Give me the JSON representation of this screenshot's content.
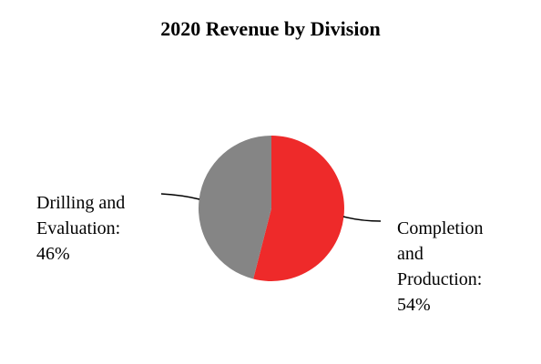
{
  "chart_data": {
    "type": "pie",
    "title": "2020 Revenue by Division",
    "slices": [
      {
        "label_lines": [
          "Completion",
          "and",
          "Production:",
          "54%"
        ],
        "value": 54,
        "color": "#ee2a2a"
      },
      {
        "label_lines": [
          "Drilling and",
          "Evaluation:",
          "46%"
        ],
        "value": 46,
        "color": "#858585"
      }
    ]
  }
}
